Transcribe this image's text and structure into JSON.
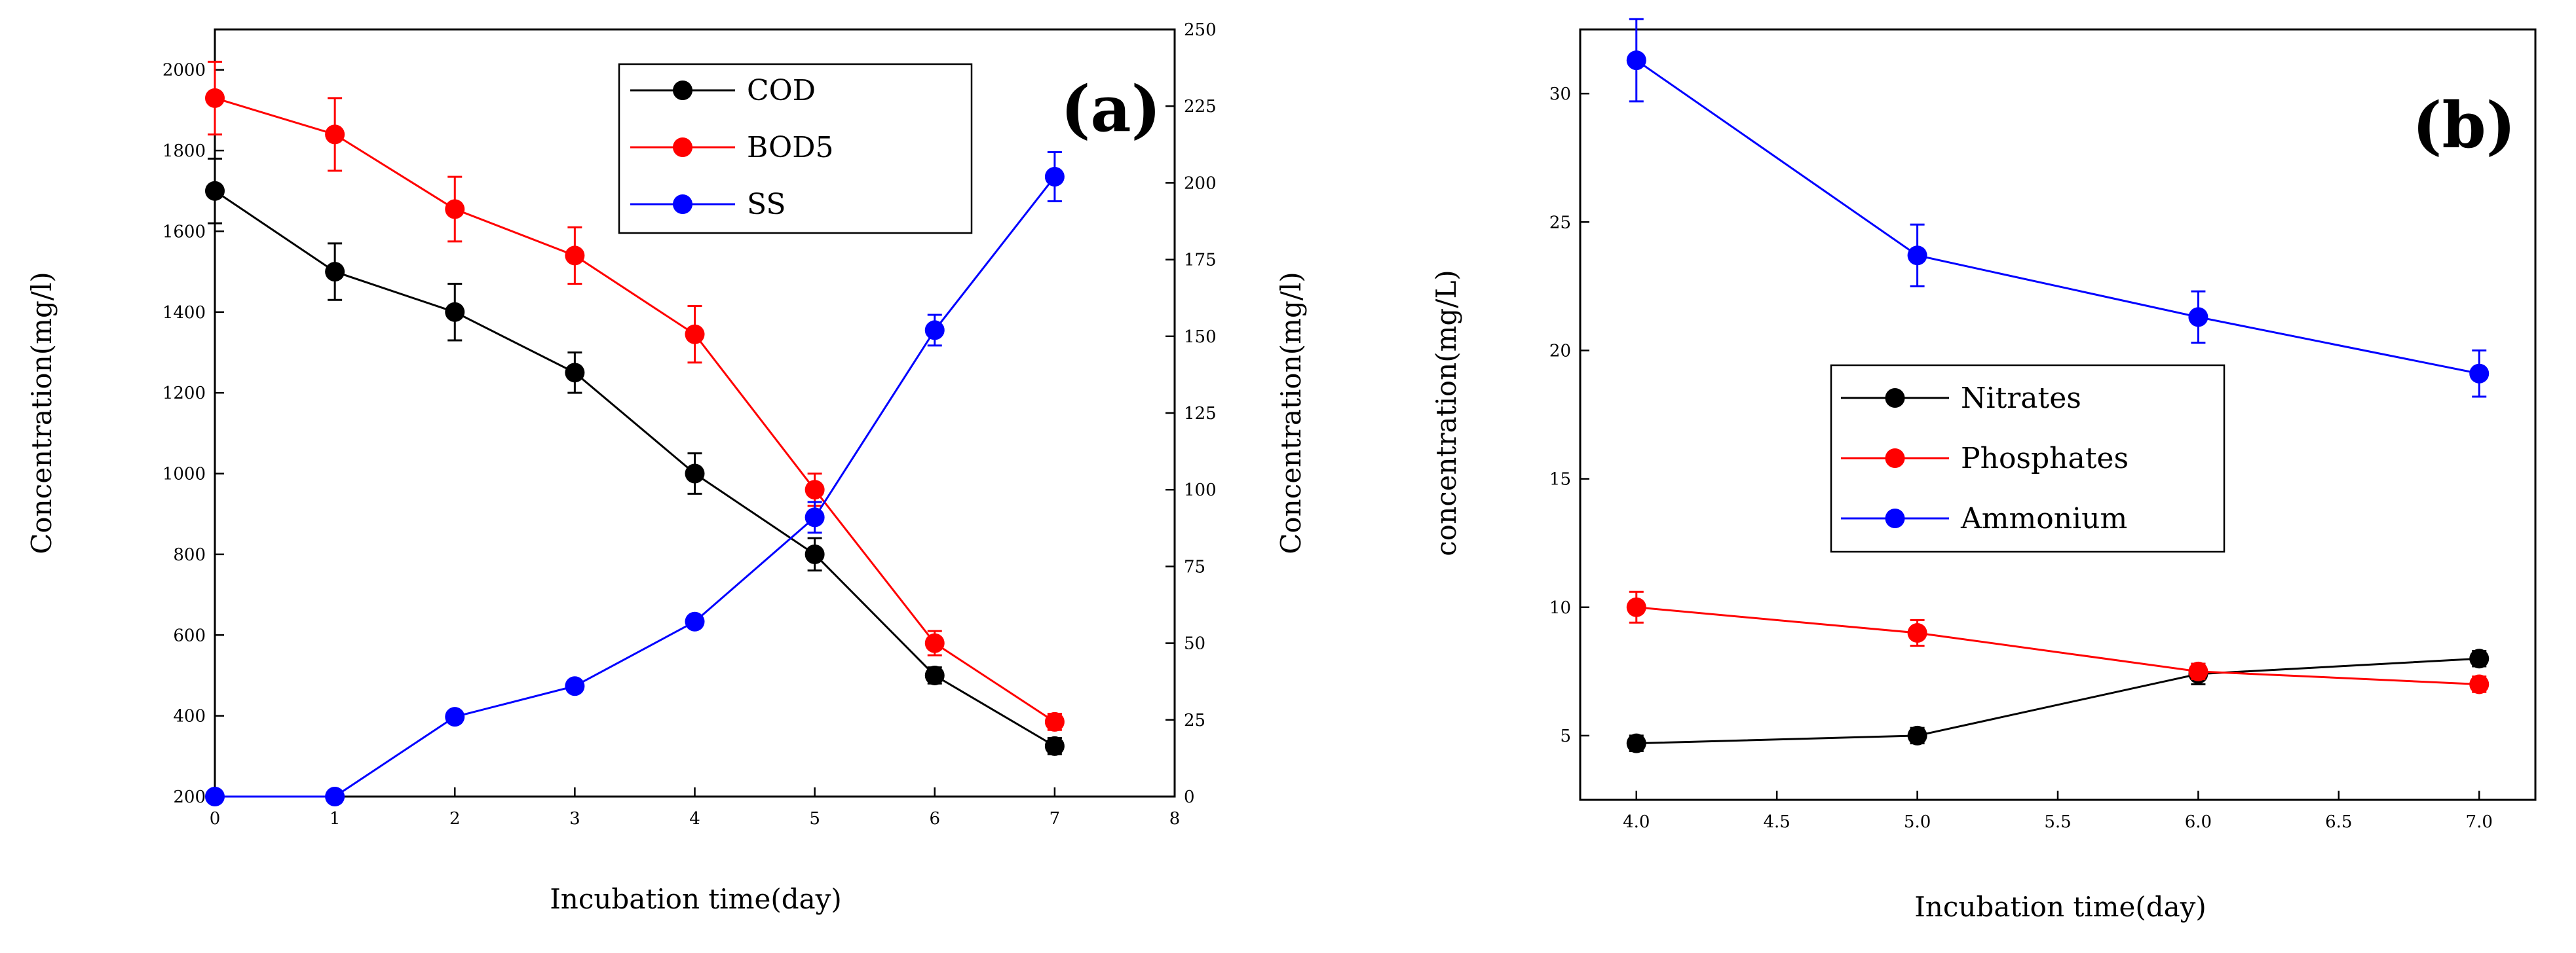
{
  "chart_data": [
    {
      "type": "line",
      "panel_label": "(a)",
      "xlabel": "Incubation time(day)",
      "ylabel": "Concentration(mg/l)",
      "ylabel_right": "Concentration(mg/l)",
      "xlim": [
        0,
        8
      ],
      "ylim": [
        200,
        2100
      ],
      "ylim_right": [
        0,
        250
      ],
      "x_ticks": [
        "0",
        "1",
        "2",
        "3",
        "4",
        "5",
        "6",
        "7",
        "8"
      ],
      "y_ticks": [
        "200",
        "400",
        "600",
        "800",
        "1000",
        "1200",
        "1400",
        "1600",
        "1800",
        "2000"
      ],
      "y_ticks_right": [
        "0",
        "25",
        "50",
        "75",
        "100",
        "125",
        "150",
        "175",
        "200",
        "225",
        "250"
      ],
      "grid": false,
      "legend_position": "top-center",
      "x": [
        0,
        1,
        2,
        3,
        4,
        5,
        6,
        7
      ],
      "series": [
        {
          "name": "COD",
          "axis": "left",
          "color": "#000000",
          "values": [
            1700,
            1500,
            1400,
            1250,
            1000,
            800,
            500,
            325
          ],
          "errors": [
            80,
            70,
            70,
            50,
            50,
            40,
            20,
            20
          ]
        },
        {
          "name": "BOD5",
          "axis": "left",
          "color": "#ff0000",
          "values": [
            1930,
            1840,
            1655,
            1540,
            1345,
            960,
            580,
            385
          ],
          "errors": [
            90,
            90,
            80,
            70,
            70,
            40,
            30,
            20
          ]
        },
        {
          "name": "SS",
          "axis": "right",
          "color": "#0000ff",
          "values": [
            0,
            0,
            26,
            36,
            57,
            91,
            152,
            202
          ],
          "errors": [
            0,
            0,
            0,
            0,
            0,
            5,
            5,
            8
          ]
        }
      ]
    },
    {
      "type": "line",
      "panel_label": "(b)",
      "xlabel": "Incubation time(day)",
      "ylabel": "concentration(mg/L)",
      "xlim": [
        3.8,
        7.2
      ],
      "ylim": [
        2.5,
        32.5
      ],
      "x_ticks": [
        "4.0",
        "4.5",
        "5.0",
        "5.5",
        "6.0",
        "6.5",
        "7.0"
      ],
      "y_ticks": [
        "5",
        "10",
        "15",
        "20",
        "25",
        "30"
      ],
      "grid": false,
      "legend_position": "center",
      "x": [
        4,
        5,
        6,
        7
      ],
      "series": [
        {
          "name": "Nitrates",
          "color": "#000000",
          "values": [
            4.7,
            5.0,
            7.4,
            8.0
          ],
          "errors": [
            0.3,
            0.3,
            0.4,
            0.3
          ]
        },
        {
          "name": "Phosphates",
          "color": "#ff0000",
          "values": [
            10.0,
            9.0,
            7.5,
            7.0
          ],
          "errors": [
            0.6,
            0.5,
            0.3,
            0.3
          ]
        },
        {
          "name": "Ammonium",
          "color": "#0000ff",
          "values": [
            31.3,
            23.7,
            21.3,
            19.1
          ],
          "errors": [
            1.6,
            1.2,
            1.0,
            0.9
          ]
        }
      ]
    }
  ]
}
